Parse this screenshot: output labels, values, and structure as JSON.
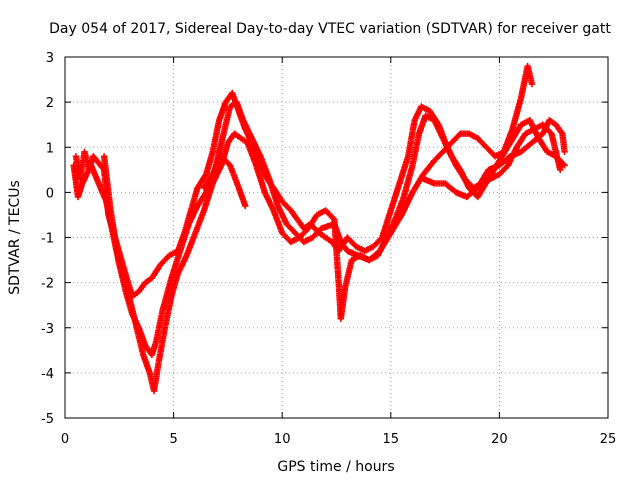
{
  "chart_data": {
    "type": "scatter",
    "title": "Day 054 of 2017, Sidereal Day-to-day VTEC variation (SDTVAR) for receiver gatt",
    "xlabel": "GPS time / hours",
    "ylabel": "SDTVAR / TECUs",
    "xlim": [
      0,
      25
    ],
    "ylim": [
      -5,
      3
    ],
    "xticks": [
      "0",
      "5",
      "10",
      "15",
      "20",
      "25"
    ],
    "yticks": [
      "-5",
      "-4",
      "-3",
      "-2",
      "-1",
      "0",
      "1",
      "2",
      "3"
    ],
    "grid": true,
    "marker": "plus",
    "color": "#ff0000",
    "series": [
      {
        "points": [
          [
            0.5,
            0.8
          ],
          [
            0.7,
            0.3
          ],
          [
            0.9,
            0.9
          ],
          [
            1.1,
            0.5
          ],
          [
            1.3,
            0.8
          ],
          [
            1.8,
            0.5
          ],
          [
            2.0,
            -0.5
          ],
          [
            2.3,
            -1.0
          ],
          [
            2.6,
            -1.5
          ],
          [
            2.9,
            -2.0
          ],
          [
            3.1,
            -2.3
          ],
          [
            3.4,
            -2.2
          ],
          [
            3.7,
            -2.0
          ],
          [
            4.0,
            -1.9
          ],
          [
            4.4,
            -1.6
          ],
          [
            4.8,
            -1.4
          ],
          [
            5.2,
            -1.3
          ],
          [
            5.5,
            -0.9
          ],
          [
            5.8,
            -0.4
          ],
          [
            6.1,
            0.1
          ],
          [
            6.5,
            0.4
          ],
          [
            6.8,
            0.9
          ],
          [
            7.1,
            1.6
          ],
          [
            7.4,
            2.0
          ],
          [
            7.7,
            2.2
          ],
          [
            8.0,
            1.8
          ],
          [
            8.3,
            1.4
          ],
          [
            8.7,
            1.0
          ],
          [
            9.0,
            0.6
          ],
          [
            9.3,
            0.3
          ],
          [
            9.6,
            0.1
          ],
          [
            10.0,
            -0.2
          ],
          [
            10.4,
            -0.4
          ],
          [
            10.7,
            -0.6
          ],
          [
            11.0,
            -0.8
          ],
          [
            11.3,
            -0.7
          ],
          [
            11.7,
            -0.9
          ],
          [
            12.0,
            -1.0
          ],
          [
            12.3,
            -1.1
          ],
          [
            12.6,
            -1.3
          ],
          [
            13.0,
            -1.0
          ],
          [
            13.4,
            -1.2
          ],
          [
            13.8,
            -1.3
          ],
          [
            14.2,
            -1.2
          ],
          [
            14.6,
            -1.0
          ],
          [
            15.0,
            -0.4
          ],
          [
            15.4,
            0.2
          ],
          [
            15.8,
            0.8
          ],
          [
            16.1,
            1.6
          ],
          [
            16.4,
            1.9
          ],
          [
            16.8,
            1.8
          ],
          [
            17.2,
            1.5
          ],
          [
            17.6,
            1.0
          ],
          [
            18.0,
            0.6
          ],
          [
            18.4,
            0.3
          ],
          [
            18.8,
            0.1
          ],
          [
            19.2,
            0.2
          ],
          [
            19.6,
            0.3
          ],
          [
            20.0,
            0.4
          ],
          [
            20.4,
            0.6
          ],
          [
            20.8,
            1.0
          ],
          [
            21.2,
            1.3
          ],
          [
            21.6,
            1.4
          ],
          [
            22.0,
            1.5
          ],
          [
            22.4,
            1.3
          ],
          [
            22.8,
            0.5
          ]
        ]
      },
      {
        "points": [
          [
            0.4,
            0.6
          ],
          [
            0.6,
            -0.1
          ],
          [
            0.8,
            0.2
          ],
          [
            1.2,
            0.6
          ],
          [
            1.9,
            -0.2
          ],
          [
            2.2,
            -0.9
          ],
          [
            2.5,
            -1.6
          ],
          [
            2.8,
            -2.2
          ],
          [
            3.1,
            -2.7
          ],
          [
            3.4,
            -3.0
          ],
          [
            3.7,
            -3.4
          ],
          [
            4.0,
            -3.6
          ],
          [
            4.2,
            -3.3
          ],
          [
            4.5,
            -2.6
          ],
          [
            4.9,
            -1.9
          ],
          [
            5.3,
            -1.3
          ],
          [
            5.7,
            -0.7
          ],
          [
            6.1,
            -0.3
          ],
          [
            6.5,
            0.0
          ],
          [
            6.9,
            0.5
          ],
          [
            7.3,
            1.3
          ],
          [
            7.6,
            1.9
          ],
          [
            7.9,
            2.0
          ],
          [
            8.2,
            1.6
          ],
          [
            8.6,
            1.2
          ],
          [
            9.0,
            0.8
          ],
          [
            9.4,
            0.3
          ],
          [
            9.8,
            -0.3
          ],
          [
            10.2,
            -0.7
          ],
          [
            10.6,
            -0.9
          ],
          [
            11.0,
            -1.1
          ],
          [
            11.4,
            -1.0
          ],
          [
            11.8,
            -0.8
          ],
          [
            12.4,
            -0.7
          ],
          [
            12.7,
            -1.1
          ],
          [
            13.0,
            -1.3
          ],
          [
            13.5,
            -1.4
          ],
          [
            14.0,
            -1.5
          ],
          [
            14.5,
            -1.3
          ],
          [
            15.0,
            -0.9
          ],
          [
            15.5,
            -0.5
          ],
          [
            16.0,
            0.0
          ],
          [
            16.5,
            0.4
          ],
          [
            17.0,
            0.7
          ],
          [
            17.4,
            0.9
          ],
          [
            17.8,
            1.1
          ],
          [
            18.2,
            1.3
          ],
          [
            18.6,
            1.3
          ],
          [
            19.0,
            1.2
          ],
          [
            19.4,
            1.0
          ],
          [
            19.8,
            0.8
          ],
          [
            20.2,
            0.9
          ],
          [
            20.6,
            1.4
          ],
          [
            21.0,
            2.1
          ],
          [
            21.3,
            2.8
          ],
          [
            21.5,
            2.4
          ]
        ]
      },
      {
        "points": [
          [
            1.8,
            0.8
          ],
          [
            2.1,
            -0.4
          ],
          [
            2.4,
            -1.3
          ],
          [
            2.7,
            -1.9
          ],
          [
            3.0,
            -2.4
          ],
          [
            3.3,
            -3.0
          ],
          [
            3.6,
            -3.6
          ],
          [
            3.9,
            -4.0
          ],
          [
            4.1,
            -4.4
          ],
          [
            4.3,
            -3.8
          ],
          [
            4.6,
            -3.0
          ],
          [
            4.9,
            -2.3
          ],
          [
            5.2,
            -1.8
          ],
          [
            5.6,
            -1.4
          ],
          [
            6.0,
            -0.9
          ],
          [
            6.4,
            -0.4
          ],
          [
            6.8,
            0.2
          ],
          [
            7.2,
            0.6
          ],
          [
            7.5,
            1.1
          ],
          [
            7.8,
            1.3
          ],
          [
            8.1,
            1.2
          ],
          [
            8.4,
            1.1
          ],
          [
            8.8,
            0.6
          ],
          [
            9.2,
            0.0
          ],
          [
            9.6,
            -0.4
          ],
          [
            10.0,
            -0.9
          ],
          [
            10.4,
            -1.1
          ],
          [
            10.8,
            -1.0
          ],
          [
            11.2,
            -0.8
          ],
          [
            11.6,
            -0.5
          ],
          [
            12.0,
            -0.4
          ],
          [
            12.4,
            -0.6
          ],
          [
            12.6,
            -2.0
          ],
          [
            12.7,
            -2.8
          ],
          [
            12.9,
            -2.1
          ],
          [
            13.2,
            -1.5
          ],
          [
            13.6,
            -1.4
          ],
          [
            14.0,
            -1.5
          ],
          [
            14.4,
            -1.4
          ],
          [
            14.8,
            -1.0
          ],
          [
            15.2,
            -0.6
          ],
          [
            15.6,
            -0.1
          ],
          [
            16.0,
            0.6
          ],
          [
            16.3,
            1.3
          ],
          [
            16.6,
            1.7
          ],
          [
            17.0,
            1.6
          ],
          [
            17.4,
            1.2
          ],
          [
            17.8,
            0.8
          ],
          [
            18.2,
            0.5
          ],
          [
            18.6,
            0.1
          ],
          [
            19.0,
            -0.1
          ],
          [
            19.5,
            0.3
          ],
          [
            20.0,
            0.7
          ],
          [
            20.5,
            1.1
          ],
          [
            21.0,
            1.5
          ],
          [
            21.4,
            1.6
          ],
          [
            21.8,
            1.2
          ],
          [
            22.2,
            0.9
          ],
          [
            22.6,
            0.8
          ],
          [
            23.0,
            0.6
          ]
        ]
      },
      {
        "points": [
          [
            6.4,
            0.1
          ],
          [
            6.8,
            0.4
          ],
          [
            7.2,
            0.8
          ],
          [
            7.6,
            0.6
          ],
          [
            8.0,
            0.1
          ],
          [
            8.3,
            -0.3
          ]
        ]
      },
      {
        "points": [
          [
            16.5,
            0.3
          ],
          [
            17.0,
            0.2
          ],
          [
            17.5,
            0.2
          ],
          [
            18.0,
            0.0
          ],
          [
            18.5,
            -0.1
          ],
          [
            19.0,
            0.1
          ],
          [
            19.5,
            0.5
          ],
          [
            20.0,
            0.6
          ],
          [
            20.5,
            0.8
          ],
          [
            21.0,
            0.9
          ],
          [
            21.5,
            1.1
          ],
          [
            22.0,
            1.3
          ],
          [
            22.3,
            1.6
          ],
          [
            22.6,
            1.5
          ],
          [
            22.9,
            1.3
          ],
          [
            23.0,
            0.9
          ]
        ]
      }
    ]
  }
}
